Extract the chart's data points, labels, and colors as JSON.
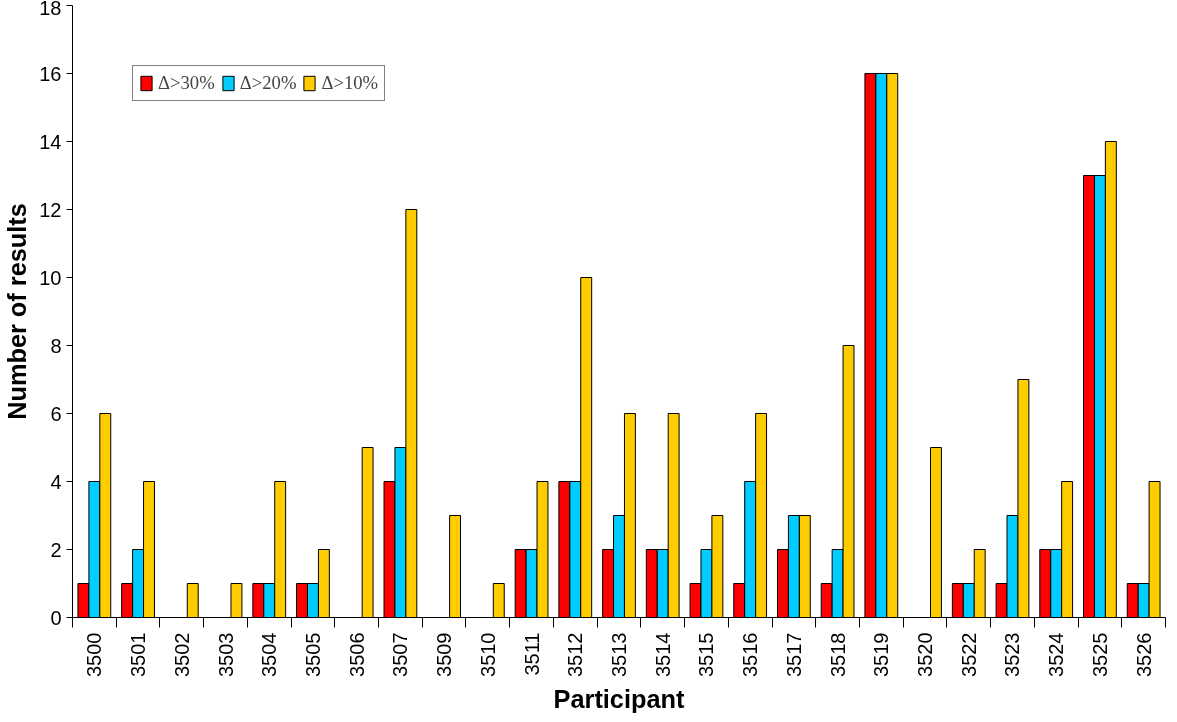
{
  "chart_data": {
    "type": "bar",
    "xlabel": "Participant",
    "ylabel": "Number of results",
    "categories": [
      "3500",
      "3501",
      "3502",
      "3503",
      "3504",
      "3505",
      "3506",
      "3507",
      "3509",
      "3510",
      "3511",
      "3512",
      "3513",
      "3514",
      "3515",
      "3516",
      "3517",
      "3518",
      "3519",
      "3520",
      "3522",
      "3523",
      "3524",
      "3525",
      "3526"
    ],
    "series": [
      {
        "name": "Δ>30%",
        "color": "#ff0000",
        "values": [
          1,
          1,
          0,
          0,
          1,
          1,
          0,
          4,
          0,
          0,
          2,
          4,
          2,
          2,
          1,
          1,
          2,
          1,
          16,
          0,
          1,
          1,
          2,
          13,
          1
        ]
      },
      {
        "name": "Δ>20%",
        "color": "#00ccff",
        "values": [
          4,
          2,
          0,
          0,
          1,
          1,
          0,
          5,
          0,
          0,
          2,
          4,
          3,
          2,
          2,
          4,
          3,
          2,
          16,
          0,
          1,
          3,
          2,
          13,
          1
        ]
      },
      {
        "name": "Δ>10%",
        "color": "#ffcc00",
        "values": [
          6,
          4,
          1,
          1,
          4,
          2,
          5,
          12,
          3,
          1,
          4,
          10,
          6,
          6,
          3,
          6,
          3,
          8,
          16,
          5,
          2,
          7,
          4,
          14,
          4
        ]
      }
    ],
    "ylim": [
      0,
      18
    ],
    "yticks": [
      0,
      2,
      4,
      6,
      8,
      10,
      12,
      14,
      16,
      18
    ],
    "grid": false,
    "legend": "top left"
  }
}
